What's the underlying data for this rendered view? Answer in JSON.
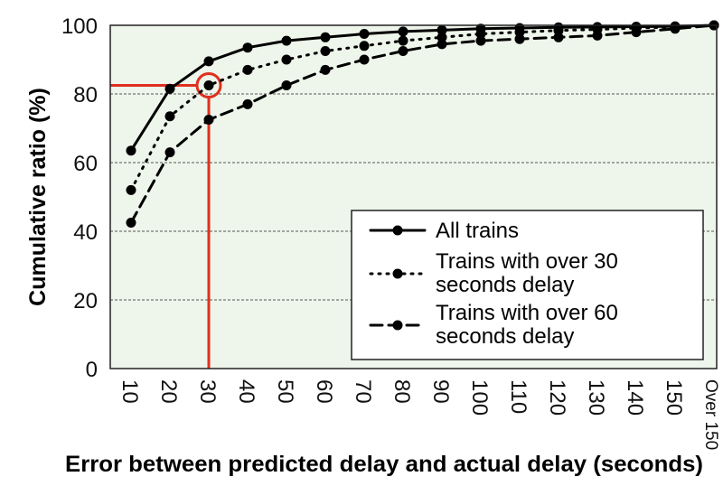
{
  "chart_data": {
    "type": "line",
    "xlabel": "Error between predicted delay and actual delay (seconds)",
    "ylabel": "Cumulative ratio (%)",
    "categories": [
      "10",
      "20",
      "30",
      "40",
      "50",
      "60",
      "70",
      "80",
      "90",
      "100",
      "110",
      "120",
      "130",
      "140",
      "150",
      "Over 150"
    ],
    "ylim": [
      0,
      100
    ],
    "yticks": [
      "0",
      "20",
      "40",
      "60",
      "80",
      "100"
    ],
    "grid": "horizontal dashed",
    "legend_position": "bottom-right",
    "series": [
      {
        "name": "All trains",
        "style": "solid",
        "values": [
          63.5,
          81.5,
          89.5,
          93.5,
          95.5,
          96.5,
          97.5,
          98.2,
          98.6,
          99,
          99.2,
          99.4,
          99.5,
          99.6,
          99.7,
          100
        ]
      },
      {
        "name": "Trains with over 30 seconds delay",
        "style": "dotted",
        "values": [
          52,
          73.5,
          82.5,
          87,
          90,
          92.5,
          94,
          95.5,
          96.5,
          97.5,
          98,
          98.5,
          98.8,
          99.2,
          99.5,
          100
        ]
      },
      {
        "name": "Trains with over 60 seconds delay",
        "style": "dashed",
        "values": [
          42.5,
          63,
          72.5,
          77,
          82.5,
          87,
          90,
          92.5,
          94.5,
          95.5,
          96,
          96.5,
          97,
          98,
          99,
          100
        ]
      }
    ],
    "legend": [
      {
        "label_lines": [
          "All trains"
        ]
      },
      {
        "label_lines": [
          "Trains with over 30",
          "seconds delay"
        ]
      },
      {
        "label_lines": [
          "Trains with over 60",
          "seconds delay"
        ]
      }
    ],
    "highlight": {
      "category": "30",
      "value": 82.5,
      "color": "#e0301e"
    },
    "colors": {
      "plot_background": "#eef5ea",
      "series": "#000000",
      "highlight": "#e0301e"
    }
  }
}
